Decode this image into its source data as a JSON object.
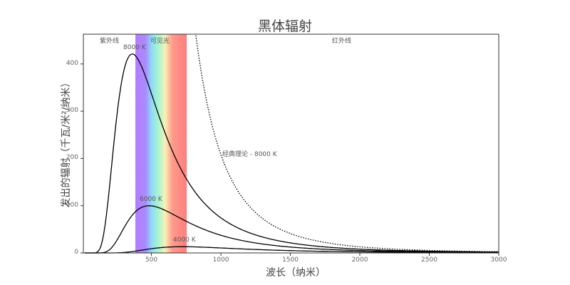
{
  "chart_data": {
    "type": "line",
    "title": "黑体辐射",
    "xlabel": "波长（纳米）",
    "ylabel": "发出的辐射（千瓦/米²/纳米）",
    "xlim": [
      10,
      3000
    ],
    "ylim": [
      0,
      463
    ],
    "xticks": [
      500,
      1000,
      1500,
      2000,
      2500,
      3000
    ],
    "yticks": [
      0,
      100,
      200,
      300,
      400
    ],
    "regions": [
      {
        "label": "紫外线",
        "range": [
          10,
          380
        ]
      },
      {
        "label": "可见光",
        "range": [
          380,
          750
        ]
      },
      {
        "label": "红外线",
        "range": [
          750,
          3000
        ]
      }
    ],
    "series": [
      {
        "name": "8000 K",
        "style": "solid",
        "peak_x": 362,
        "peak_y": 421
      },
      {
        "name": "6000 K",
        "style": "solid",
        "peak_x": 483,
        "peak_y": 100
      },
      {
        "name": "4000 K",
        "style": "solid",
        "peak_x": 724,
        "peak_y": 13
      },
      {
        "name": "经典理论 - 8000 K",
        "style": "dotted"
      }
    ],
    "grid": false
  },
  "labels": {
    "uv": "紫外线",
    "visible": "可见光",
    "ir": "红外线",
    "t8000": "8000 K",
    "t6000": "6000 K",
    "t4000": "4000 K",
    "classical": "经典理论 - 8000 K"
  },
  "ticks": {
    "x": [
      "500",
      "1000",
      "1500",
      "2000",
      "2500",
      "3000"
    ],
    "y": [
      "0",
      "100",
      "200",
      "300",
      "400"
    ]
  }
}
